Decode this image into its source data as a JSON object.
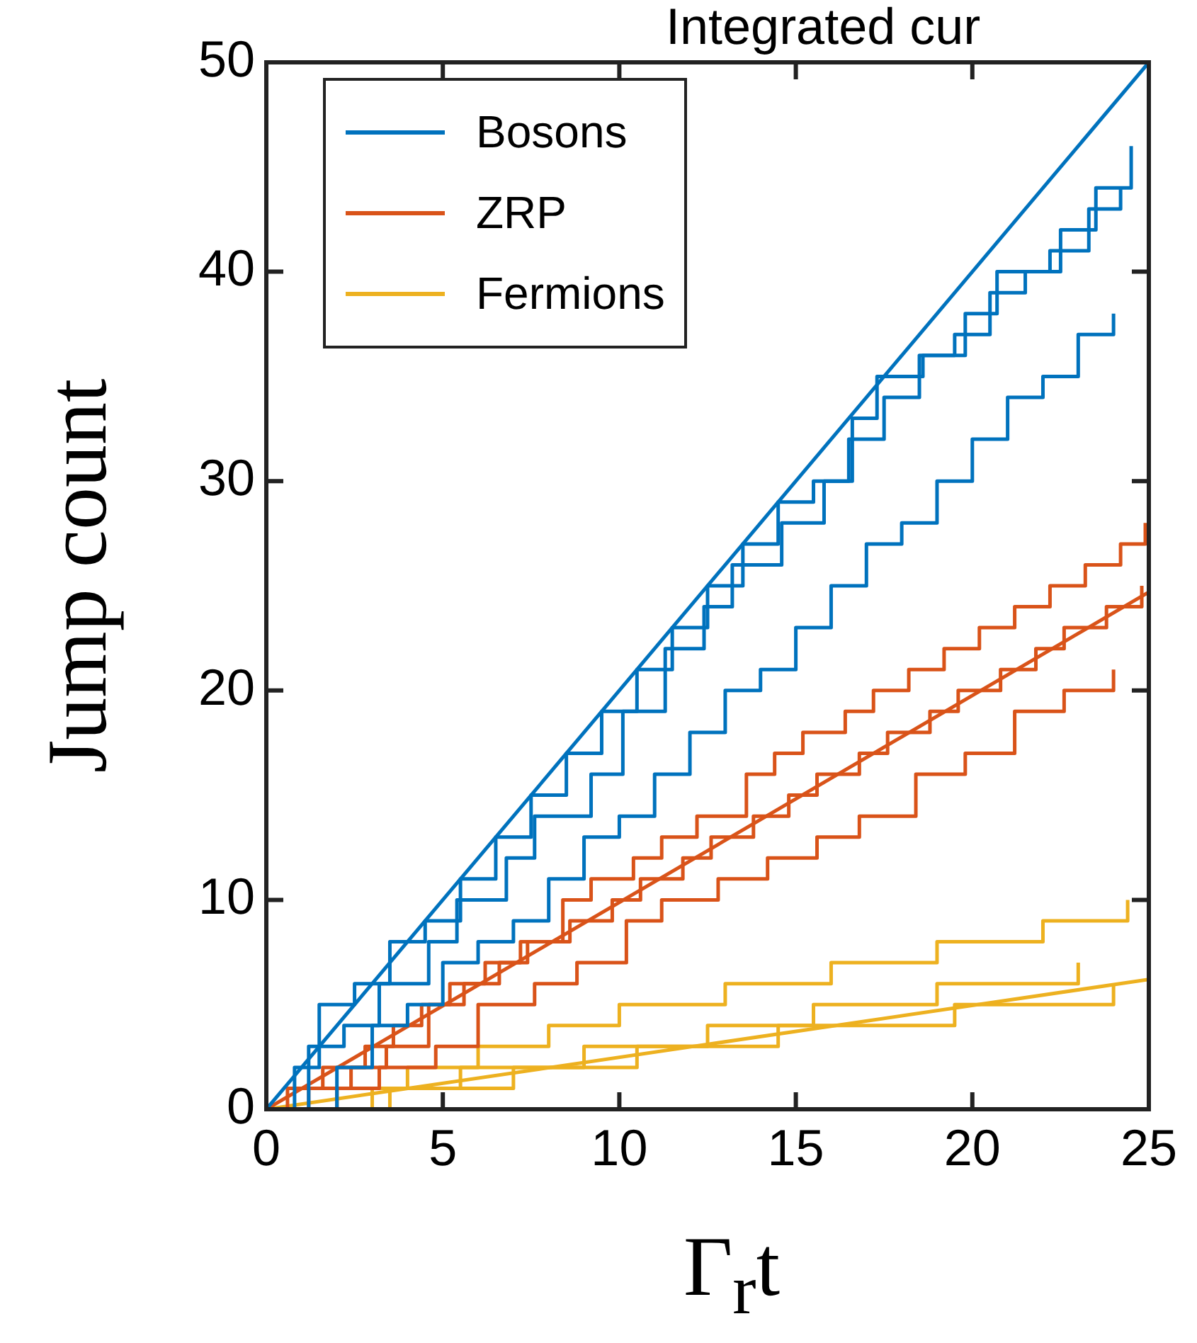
{
  "chart_data": {
    "type": "step",
    "title": "Integrated cur",
    "xlabel": "Γ$_{r}$t",
    "ylabel": "Jump count",
    "xlim": [
      0,
      25
    ],
    "ylim": [
      0,
      50
    ],
    "xticks": [
      0,
      5,
      10,
      15,
      20,
      25
    ],
    "yticks": [
      0,
      10,
      20,
      30,
      40,
      50
    ],
    "grid": false,
    "legend": "top left",
    "marker": "none",
    "line_style": "solid",
    "series": [
      {
        "name": "Bosons",
        "color": "#0072bd",
        "x": [
          0,
          0.8,
          1.5,
          2.5,
          3.5,
          4.5,
          5.5,
          6.5,
          7.5,
          8.5,
          9.5,
          10.5,
          11.5,
          12.5,
          13.5,
          14.5,
          15.5,
          16.5,
          17.5,
          18.5,
          19.5,
          20.5,
          21.5,
          22.5,
          23.5,
          24.5
        ],
        "values": [
          0,
          2,
          5,
          6,
          8,
          9,
          11,
          13,
          15,
          17,
          19,
          21,
          23,
          25,
          27,
          29,
          30,
          32,
          34,
          36,
          37,
          39,
          40,
          42,
          44,
          46
        ]
      },
      {
        "color": "#0072bd",
        "x": [
          0,
          1,
          2,
          3,
          4,
          5,
          6,
          7,
          8,
          9,
          10,
          11,
          12,
          13,
          14,
          15,
          16,
          17,
          18,
          19,
          20,
          21,
          22,
          23,
          24
        ],
        "values": [
          0,
          0,
          2,
          4,
          5,
          7,
          8,
          9,
          11,
          13,
          14,
          16,
          18,
          20,
          21,
          23,
          25,
          27,
          28,
          30,
          32,
          34,
          35,
          37,
          38
        ]
      },
      {
        "color": "#0072bd",
        "x": [
          0,
          1.2,
          2.2,
          3.2,
          4.6,
          5.4,
          6.8,
          7.6,
          9.2,
          10.1,
          11.3,
          12.4,
          13.2,
          14.6,
          15.8,
          16.6,
          17.3,
          18.6,
          19.8,
          20.7,
          22.2,
          23.3,
          24.2
        ],
        "values": [
          0,
          3,
          4,
          6,
          8,
          10,
          12,
          14,
          16,
          19,
          22,
          24,
          26,
          28,
          30,
          33,
          35,
          36,
          38,
          40,
          41,
          43,
          44
        ]
      },
      {
        "color": "#0072bd",
        "x": [
          0,
          25
        ],
        "values": [
          0,
          50
        ],
        "type": "line"
      },
      {
        "name": "ZRP",
        "color": "#d95319",
        "x": [
          0,
          0.6,
          1.6,
          2.8,
          3.6,
          4.4,
          5.6,
          6.6,
          7.4,
          8.6,
          9.8,
          10.6,
          11.8,
          12.6,
          13.8,
          14.8,
          15.6,
          16.8,
          17.6,
          18.8,
          19.6,
          20.8,
          21.8,
          22.6,
          23.8,
          24.8
        ],
        "values": [
          0,
          1,
          2,
          3,
          4,
          5,
          6,
          7,
          8,
          9,
          10,
          11,
          12,
          13,
          14,
          15,
          16,
          17,
          18,
          19,
          20,
          21,
          22,
          23,
          24,
          25
        ]
      },
      {
        "color": "#d95319",
        "x": [
          0,
          1.2,
          2.4,
          3.4,
          4.6,
          5.2,
          6.2,
          7.2,
          8.4,
          9.2,
          10.4,
          11.2,
          12.2,
          13.6,
          14.4,
          15.2,
          16.4,
          17.2,
          18.2,
          19.2,
          20.2,
          21.2,
          22.2,
          23.2,
          24.2,
          24.9
        ],
        "values": [
          0,
          1,
          2,
          3,
          5,
          6,
          7,
          8,
          10,
          11,
          12,
          13,
          14,
          16,
          17,
          18,
          19,
          20,
          21,
          22,
          23,
          24,
          25,
          26,
          27,
          28
        ]
      },
      {
        "color": "#d95319",
        "x": [
          0,
          2,
          3.2,
          4.8,
          6,
          7.6,
          8.8,
          10.2,
          11.2,
          12.8,
          14.2,
          15.6,
          16.8,
          18.4,
          19.8,
          21.2,
          22.6,
          24
        ],
        "values": [
          0,
          1,
          2,
          3,
          5,
          6,
          7,
          9,
          10,
          11,
          12,
          13,
          14,
          16,
          17,
          19,
          20,
          21
        ]
      },
      {
        "color": "#d95319",
        "x": [
          0,
          25
        ],
        "values": [
          0,
          24.7
        ],
        "type": "line"
      },
      {
        "name": "Fermions",
        "color": "#edb120",
        "x": [
          0,
          2,
          4,
          6,
          8,
          10,
          13,
          16,
          19,
          22,
          24.4
        ],
        "values": [
          0,
          1,
          2,
          3,
          4,
          5,
          6,
          7,
          8,
          9,
          10
        ]
      },
      {
        "color": "#edb120",
        "x": [
          0,
          3,
          5.5,
          9,
          12.5,
          15.5,
          19,
          23
        ],
        "values": [
          0,
          1,
          2,
          3,
          4,
          5,
          6,
          7
        ]
      },
      {
        "color": "#edb120",
        "x": [
          0,
          3.5,
          7,
          10.5,
          14.5,
          19.5,
          24
        ],
        "values": [
          0,
          1,
          2,
          3,
          4,
          5,
          6
        ]
      },
      {
        "color": "#edb120",
        "x": [
          0,
          25
        ],
        "values": [
          0,
          6.2
        ],
        "type": "line"
      }
    ]
  }
}
